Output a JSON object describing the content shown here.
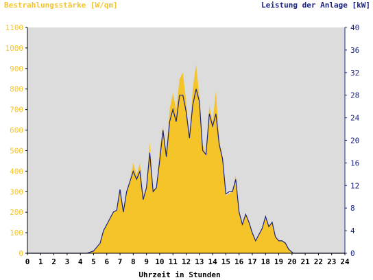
{
  "chart_data": {
    "type": "area",
    "title_left": "Bestrahlungsstärke [W/qm]",
    "title_right": "Leistung der Anlage [kW]",
    "xlabel": "Uhrzeit in Stunden",
    "x_ticks": [
      "0",
      "1",
      "2",
      "3",
      "4",
      "5",
      "6",
      "7",
      "8",
      "9",
      "10",
      "11",
      "12",
      "13",
      "14",
      "15",
      "16",
      "17",
      "18",
      "19",
      "20",
      "21",
      "22",
      "23",
      "24"
    ],
    "xlim": [
      0,
      24
    ],
    "y_left_ticks": [
      "0",
      "100",
      "200",
      "300",
      "400",
      "500",
      "600",
      "700",
      "800",
      "900",
      "1000",
      "1100"
    ],
    "ylim_left": [
      0,
      1100
    ],
    "y_right_ticks": [
      "0",
      "4",
      "8",
      "12",
      "16",
      "20",
      "24",
      "28",
      "32",
      "36",
      "40"
    ],
    "ylim_right": [
      0,
      40
    ],
    "grid": false,
    "colors": {
      "irradiance_fill": "#f5c429",
      "power_line": "#1a237e",
      "plot_background": "#dcdcdc",
      "left_axis_text": "#f5c429",
      "right_axis_text": "#1a237e"
    },
    "series": [
      {
        "name": "Bestrahlungsstärke [W/qm]",
        "axis": "left",
        "x": [
          0,
          4.5,
          5,
          5.25,
          5.5,
          5.75,
          6,
          6.25,
          6.5,
          6.75,
          7,
          7.25,
          7.5,
          7.75,
          8,
          8.25,
          8.5,
          8.75,
          9,
          9.25,
          9.5,
          9.75,
          10,
          10.25,
          10.5,
          10.75,
          11,
          11.25,
          11.5,
          11.75,
          12,
          12.25,
          12.5,
          12.75,
          13,
          13.25,
          13.5,
          13.75,
          14,
          14.25,
          14.5,
          14.75,
          15,
          15.25,
          15.5,
          15.75,
          16,
          16.25,
          16.5,
          16.75,
          17,
          17.25,
          17.5,
          17.75,
          18,
          18.25,
          18.5,
          18.75,
          19,
          19.25,
          19.5,
          19.75,
          20,
          20.1,
          24
        ],
        "values": [
          0,
          0,
          10,
          30,
          50,
          110,
          140,
          170,
          200,
          210,
          310,
          200,
          300,
          350,
          440,
          380,
          440,
          280,
          320,
          540,
          310,
          320,
          500,
          620,
          490,
          700,
          780,
          700,
          850,
          880,
          740,
          560,
          800,
          920,
          760,
          530,
          480,
          720,
          640,
          790,
          550,
          470,
          280,
          290,
          300,
          380,
          200,
          140,
          190,
          150,
          100,
          60,
          90,
          120,
          180,
          130,
          150,
          80,
          60,
          60,
          50,
          20,
          5,
          0,
          0
        ]
      },
      {
        "name": "Leistung der Anlage [kW]",
        "axis": "right",
        "x": [
          0,
          4.5,
          5,
          5.25,
          5.5,
          5.75,
          6,
          6.25,
          6.5,
          6.75,
          7,
          7.25,
          7.5,
          7.75,
          8,
          8.25,
          8.5,
          8.75,
          9,
          9.25,
          9.5,
          9.75,
          10,
          10.25,
          10.5,
          10.75,
          11,
          11.25,
          11.5,
          11.75,
          12,
          12.25,
          12.5,
          12.75,
          13,
          13.25,
          13.5,
          13.75,
          14,
          14.25,
          14.5,
          14.75,
          15,
          15.25,
          15.5,
          15.75,
          16,
          16.25,
          16.5,
          16.75,
          17,
          17.25,
          17.5,
          17.75,
          18,
          18.25,
          18.5,
          18.75,
          19,
          19.25,
          19.5,
          19.75,
          20,
          20.1,
          24
        ],
        "values": [
          0,
          0,
          0.4,
          1.1,
          1.8,
          4.0,
          5.1,
          6.2,
          7.3,
          7.6,
          11.3,
          7.3,
          10.9,
          12.7,
          14.5,
          13.1,
          14.5,
          9.5,
          11.6,
          17.8,
          10.9,
          11.6,
          16.4,
          21.8,
          17.1,
          23.3,
          25.5,
          23.3,
          28.0,
          28.0,
          25.1,
          20.4,
          26.2,
          29.1,
          26.9,
          18.2,
          17.5,
          24.7,
          22.5,
          24.7,
          19.3,
          16.7,
          10.5,
          10.9,
          10.9,
          13.1,
          7.3,
          5.1,
          6.9,
          5.5,
          3.6,
          2.2,
          3.3,
          4.4,
          6.5,
          4.7,
          5.5,
          2.9,
          2.2,
          2.2,
          1.8,
          0.7,
          0.2,
          0,
          0
        ]
      }
    ]
  }
}
